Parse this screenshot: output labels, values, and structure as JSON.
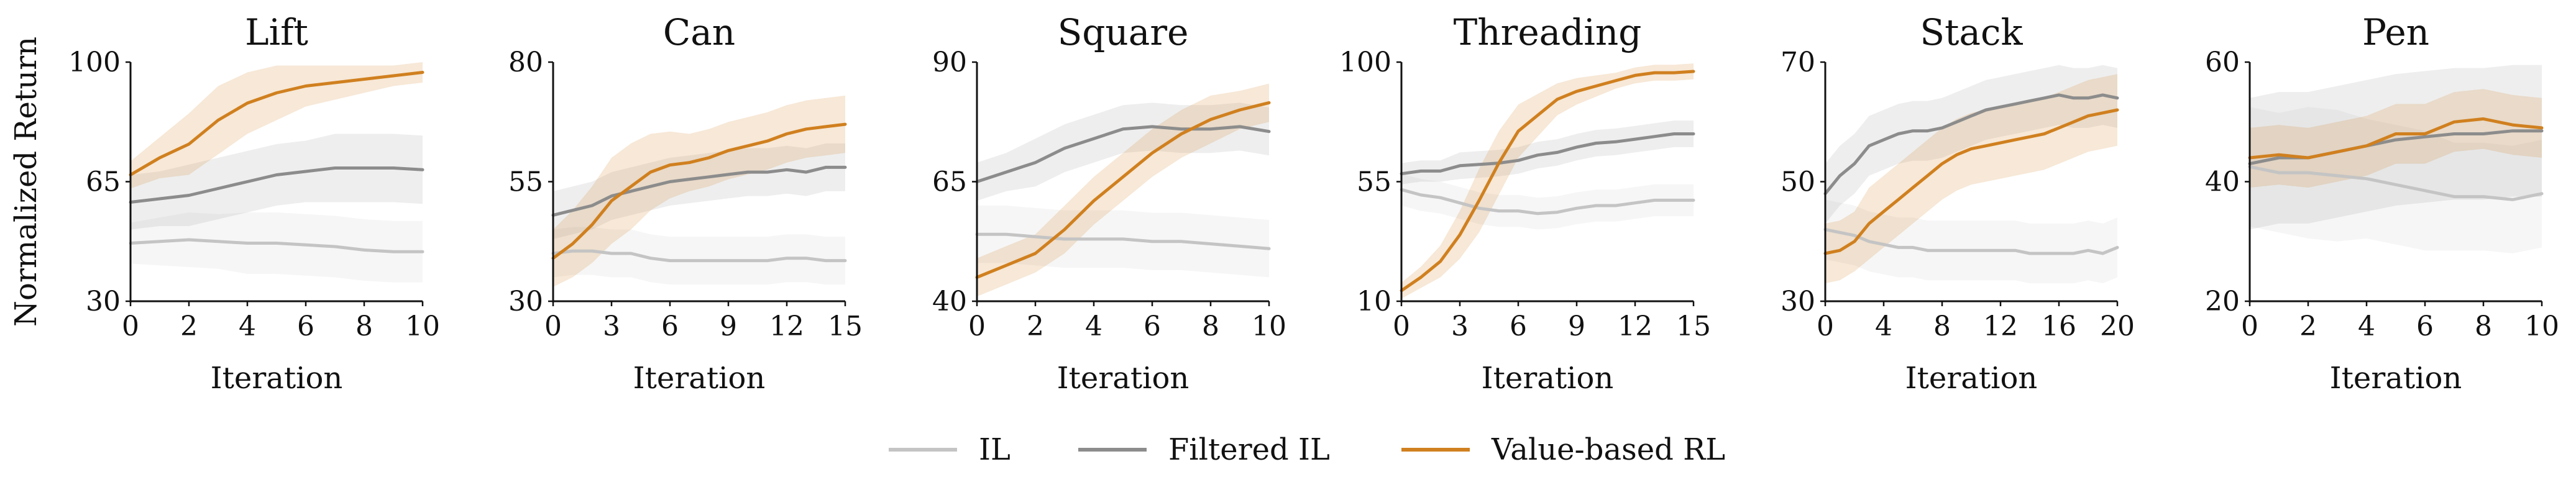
{
  "figure": {
    "ylabel": "Normalized Return",
    "legend": [
      {
        "name": "IL",
        "color": "#c4c4c4"
      },
      {
        "name": "Filtered IL",
        "color": "#8c8c8c"
      },
      {
        "name": "Value-based RL",
        "color": "#d0801f"
      }
    ]
  },
  "chart_data": [
    {
      "type": "line",
      "title": "Lift",
      "xlabel": "Iteration",
      "xlim": [
        0,
        10
      ],
      "ylim": [
        30,
        100
      ],
      "xticks": [
        0,
        2,
        4,
        6,
        8,
        10
      ],
      "yticks": [
        30,
        65,
        100
      ],
      "x": [
        0,
        1,
        2,
        3,
        4,
        5,
        6,
        7,
        8,
        9,
        10
      ],
      "series": [
        {
          "name": "IL",
          "values": [
            47,
            47.5,
            48,
            47.5,
            47,
            47,
            46.5,
            46,
            45,
            44.5,
            44.5
          ],
          "band": [
            6,
            7,
            8,
            8,
            9,
            9,
            9,
            9,
            9,
            9,
            9
          ]
        },
        {
          "name": "Filtered IL",
          "values": [
            59,
            60,
            61,
            63,
            65,
            67,
            68,
            69,
            69,
            69,
            68.5
          ],
          "band": [
            8,
            8,
            9,
            9,
            9,
            9,
            9,
            10,
            10,
            10,
            10
          ]
        },
        {
          "name": "Value-based RL",
          "values": [
            67,
            72,
            76,
            83,
            88,
            91,
            93,
            94,
            95,
            96,
            97
          ],
          "band": [
            4,
            6,
            9,
            10,
            9,
            8,
            6,
            5,
            4,
            3,
            3
          ]
        }
      ]
    },
    {
      "type": "line",
      "title": "Can",
      "xlabel": "Iteration",
      "xlim": [
        0,
        15
      ],
      "ylim": [
        30,
        80
      ],
      "xticks": [
        0,
        3,
        6,
        9,
        12,
        15
      ],
      "yticks": [
        30,
        55,
        80
      ],
      "x": [
        0,
        1,
        2,
        3,
        4,
        5,
        6,
        7,
        8,
        9,
        10,
        11,
        12,
        13,
        14,
        15
      ],
      "series": [
        {
          "name": "IL",
          "values": [
            40,
            40.5,
            40.5,
            40,
            40,
            39,
            38.5,
            38.5,
            38.5,
            38.5,
            38.5,
            38.5,
            39,
            39,
            38.5,
            38.5
          ],
          "band": [
            5,
            5,
            5,
            5,
            5,
            5,
            5,
            5,
            5,
            5,
            5,
            5,
            5,
            5,
            5,
            5
          ]
        },
        {
          "name": "Filtered IL",
          "values": [
            48,
            49,
            50,
            52,
            53,
            54,
            55,
            55.5,
            56,
            56.5,
            57,
            57,
            57.5,
            57,
            58,
            58
          ],
          "band": [
            5,
            5,
            5,
            5,
            5,
            5,
            5,
            5,
            5,
            5,
            5,
            5,
            5,
            5,
            5,
            5
          ]
        },
        {
          "name": "Value-based RL",
          "values": [
            39,
            42,
            46,
            51,
            54,
            57,
            58.5,
            59,
            60,
            61.5,
            62.5,
            63.5,
            65,
            66,
            66.5,
            67
          ],
          "band": [
            6,
            7,
            8,
            9,
            9,
            8,
            7,
            6,
            6,
            6,
            6,
            6,
            6,
            6,
            6,
            6
          ]
        }
      ]
    },
    {
      "type": "line",
      "title": "Square",
      "xlabel": "Iteration",
      "xlim": [
        0,
        10
      ],
      "ylim": [
        40,
        90
      ],
      "xticks": [
        0,
        2,
        4,
        6,
        8,
        10
      ],
      "yticks": [
        40,
        65,
        90
      ],
      "x": [
        0,
        1,
        2,
        3,
        4,
        5,
        6,
        7,
        8,
        9,
        10
      ],
      "series": [
        {
          "name": "IL",
          "values": [
            54,
            54,
            53.5,
            53,
            53,
            53,
            52.5,
            52.5,
            52,
            51.5,
            51
          ],
          "band": [
            6,
            6,
            6,
            6,
            6,
            6,
            6,
            6,
            6,
            6,
            6
          ]
        },
        {
          "name": "Filtered IL",
          "values": [
            65,
            67,
            69,
            72,
            74,
            76,
            76.5,
            76,
            76,
            76.5,
            75.5
          ],
          "band": [
            4,
            4,
            5,
            5,
            5,
            5,
            5,
            5,
            5,
            5,
            5
          ]
        },
        {
          "name": "Value-based RL",
          "values": [
            45,
            47.5,
            50,
            55,
            61,
            66,
            71,
            75,
            78,
            80,
            81.5
          ],
          "band": [
            4,
            4,
            4,
            5,
            5,
            5,
            5,
            5,
            5,
            4,
            4
          ]
        }
      ]
    },
    {
      "type": "line",
      "title": "Threading",
      "xlabel": "Iteration",
      "xlim": [
        0,
        15
      ],
      "ylim": [
        10,
        100
      ],
      "xticks": [
        0,
        3,
        6,
        9,
        12,
        15
      ],
      "yticks": [
        10,
        55,
        100
      ],
      "x": [
        0,
        1,
        2,
        3,
        4,
        5,
        6,
        7,
        8,
        9,
        10,
        11,
        12,
        13,
        14,
        15
      ],
      "series": [
        {
          "name": "IL",
          "values": [
            52,
            50,
            49,
            47,
            45,
            44,
            44,
            43,
            43.5,
            45,
            46,
            46,
            47,
            48,
            48,
            48
          ],
          "band": [
            6,
            6,
            6,
            6,
            6,
            6,
            6,
            6,
            6,
            6,
            6,
            6,
            6,
            6,
            6,
            6
          ]
        },
        {
          "name": "Filtered IL",
          "values": [
            58,
            59,
            59,
            61,
            61.5,
            62,
            63,
            65,
            66,
            68,
            69.5,
            70,
            71,
            72,
            73,
            73
          ],
          "band": [
            4,
            4,
            4,
            5,
            5,
            5,
            5,
            5,
            5,
            5,
            5,
            5,
            5,
            5,
            5,
            5
          ]
        },
        {
          "name": "Value-based RL",
          "values": [
            14,
            19,
            25,
            35,
            48,
            62,
            74,
            80,
            86,
            89,
            91,
            93,
            95,
            96,
            96,
            96.5
          ],
          "band": [
            3,
            4,
            6,
            9,
            12,
            12,
            10,
            8,
            6,
            5,
            4,
            3,
            3,
            3,
            3,
            3
          ]
        }
      ]
    },
    {
      "type": "line",
      "title": "Stack",
      "xlabel": "Iteration",
      "xlim": [
        0,
        20
      ],
      "ylim": [
        30,
        70
      ],
      "xticks": [
        0,
        4,
        8,
        12,
        16,
        20
      ],
      "yticks": [
        30,
        50,
        70
      ],
      "x": [
        0,
        1,
        2,
        3,
        4,
        5,
        6,
        7,
        8,
        9,
        10,
        11,
        12,
        13,
        14,
        15,
        16,
        17,
        18,
        19,
        20
      ],
      "series": [
        {
          "name": "IL",
          "values": [
            42,
            41.5,
            41,
            40,
            39.5,
            39,
            39,
            38.5,
            38.5,
            38.5,
            38.5,
            38.5,
            38.5,
            38.5,
            38,
            38,
            38,
            38,
            38.5,
            38,
            39
          ],
          "band": [
            5,
            5,
            5,
            5,
            5,
            5,
            5,
            5,
            5,
            5,
            5,
            5,
            5,
            5,
            5,
            5,
            5,
            5,
            5,
            5,
            5
          ]
        },
        {
          "name": "Filtered IL",
          "values": [
            48,
            51,
            53,
            56,
            57,
            58,
            58.5,
            58.5,
            59,
            60,
            61,
            62,
            62.5,
            63,
            63.5,
            64,
            64.5,
            64,
            64,
            64.5,
            64
          ],
          "band": [
            5,
            5,
            5,
            5,
            5,
            5,
            5,
            5,
            5,
            5,
            5,
            5,
            5,
            5,
            5,
            5,
            5,
            5,
            5,
            5,
            5
          ]
        },
        {
          "name": "Value-based RL",
          "values": [
            38,
            38.5,
            40,
            43,
            45,
            47,
            49,
            51,
            53,
            54.5,
            55.5,
            56,
            56.5,
            57,
            57.5,
            58,
            59,
            60,
            61,
            61.5,
            62
          ],
          "band": [
            5,
            5,
            5,
            6,
            6,
            6,
            6,
            6,
            6,
            6,
            6,
            6,
            6,
            6,
            6,
            6,
            6,
            6,
            6,
            6,
            6
          ]
        }
      ]
    },
    {
      "type": "line",
      "title": "Pen",
      "xlabel": "Iteration",
      "xlim": [
        0,
        10
      ],
      "ylim": [
        20,
        60
      ],
      "xticks": [
        0,
        2,
        4,
        6,
        8,
        10
      ],
      "yticks": [
        20,
        40,
        60
      ],
      "x": [
        0,
        1,
        2,
        3,
        4,
        5,
        6,
        7,
        8,
        9,
        10
      ],
      "series": [
        {
          "name": "IL",
          "values": [
            42.5,
            41.5,
            41.5,
            41,
            40.5,
            39.5,
            38.5,
            37.5,
            37.5,
            37,
            38
          ],
          "band": [
            10,
            10,
            11,
            11,
            10,
            10,
            10,
            9,
            9,
            9,
            9
          ]
        },
        {
          "name": "Filtered IL",
          "values": [
            43,
            44,
            44,
            45,
            46,
            47,
            47.5,
            48,
            48,
            48.5,
            48.5
          ],
          "band": [
            11,
            11,
            11,
            11,
            11,
            11,
            11,
            11,
            11,
            11,
            11
          ]
        },
        {
          "name": "Value-based RL",
          "values": [
            44,
            44.5,
            44,
            45,
            46,
            48,
            48,
            50,
            50.5,
            49.5,
            49
          ],
          "band": [
            5,
            5,
            5,
            5,
            5,
            5,
            5,
            5,
            5,
            5,
            5
          ]
        }
      ]
    }
  ]
}
